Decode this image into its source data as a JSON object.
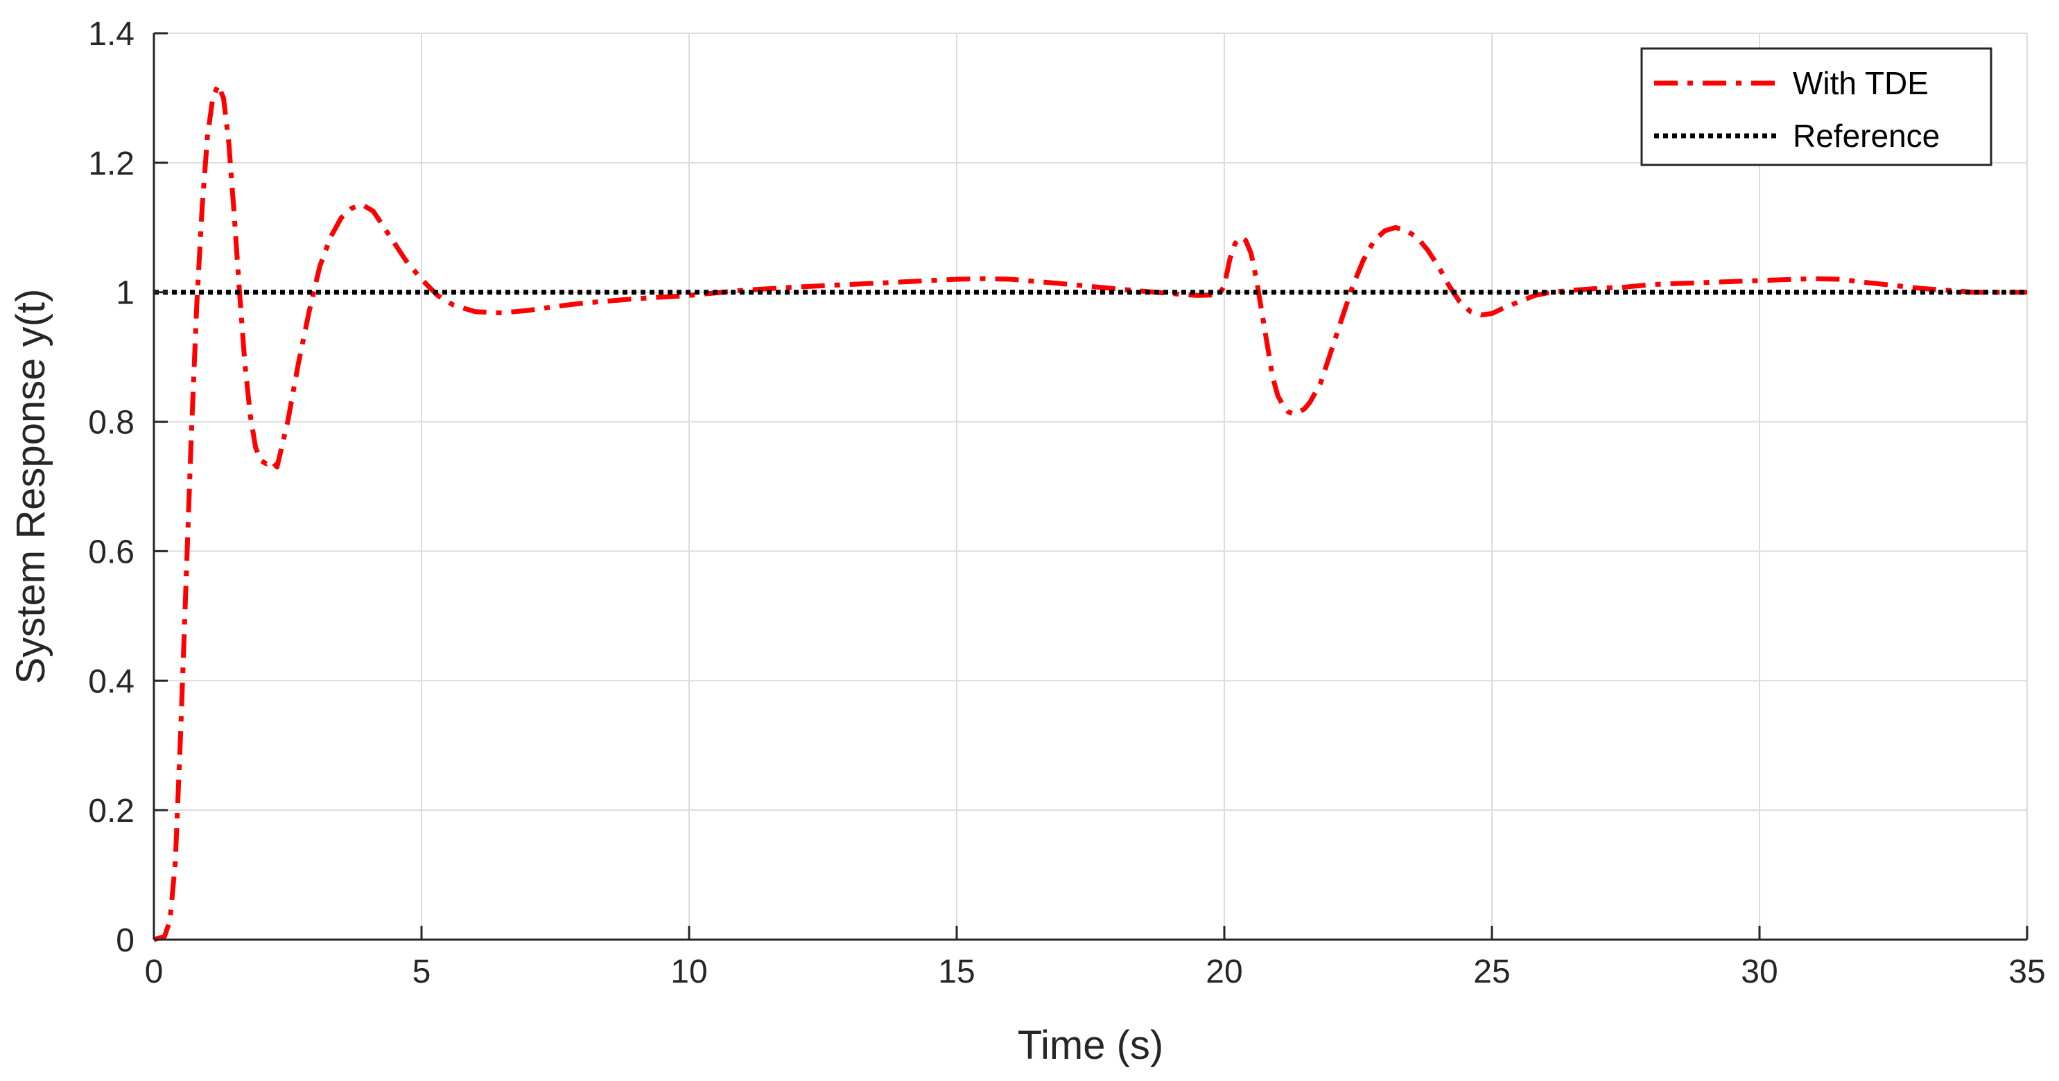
{
  "chart_data": {
    "type": "line",
    "title": "",
    "xlabel": "Time (s)",
    "ylabel": "System Response y(t)",
    "xlim": [
      0,
      35
    ],
    "ylim": [
      0,
      1.4
    ],
    "xticks": [
      0,
      5,
      10,
      15,
      20,
      25,
      30,
      35
    ],
    "yticks": [
      0,
      0.2,
      0.4,
      0.6,
      0.8,
      1,
      1.2,
      1.4
    ],
    "xtick_labels": [
      "0",
      "5",
      "10",
      "15",
      "20",
      "25",
      "30",
      "35"
    ],
    "ytick_labels": [
      "0",
      "0.2",
      "0.4",
      "0.6",
      "0.8",
      "1",
      "1.2",
      "1.4"
    ],
    "grid": true,
    "legend_position": "top-right",
    "series": [
      {
        "name": "With TDE",
        "color": "#ff0000",
        "style": "dash-dot",
        "x": [
          0,
          0.2,
          0.3,
          0.4,
          0.5,
          0.6,
          0.7,
          0.8,
          0.9,
          1.0,
          1.1,
          1.2,
          1.3,
          1.4,
          1.5,
          1.6,
          1.7,
          1.8,
          1.9,
          2.0,
          2.1,
          2.2,
          2.3,
          2.5,
          2.7,
          2.9,
          3.1,
          3.3,
          3.5,
          3.7,
          3.9,
          4.1,
          4.3,
          4.5,
          4.7,
          5.0,
          5.3,
          5.6,
          6.0,
          6.5,
          7.0,
          7.5,
          8,
          9,
          10,
          11,
          12,
          13,
          14,
          15,
          15.5,
          16,
          17,
          18,
          19,
          19.5,
          19.9,
          20.0,
          20.1,
          20.2,
          20.3,
          20.4,
          20.5,
          20.6,
          20.7,
          20.8,
          20.9,
          21.0,
          21.1,
          21.2,
          21.3,
          21.4,
          21.5,
          21.6,
          21.8,
          22.0,
          22.2,
          22.4,
          22.6,
          22.8,
          23.0,
          23.2,
          23.4,
          23.6,
          23.8,
          24.0,
          24.2,
          24.4,
          24.6,
          24.8,
          25.0,
          25.2,
          25.5,
          25.8,
          26.1,
          26.5,
          27.0,
          27.5,
          28,
          29,
          30,
          31,
          31.5,
          32,
          33,
          34,
          35
        ],
        "y": [
          0,
          0.005,
          0.03,
          0.12,
          0.32,
          0.55,
          0.78,
          0.98,
          1.13,
          1.24,
          1.3,
          1.32,
          1.3,
          1.23,
          1.12,
          1.0,
          0.89,
          0.81,
          0.76,
          0.74,
          0.735,
          0.74,
          0.73,
          0.8,
          0.89,
          0.97,
          1.04,
          1.085,
          1.115,
          1.13,
          1.135,
          1.125,
          1.1,
          1.075,
          1.05,
          1.02,
          0.995,
          0.98,
          0.97,
          0.968,
          0.972,
          0.978,
          0.983,
          0.99,
          0.995,
          1.003,
          1.008,
          1.012,
          1.016,
          1.02,
          1.021,
          1.02,
          1.013,
          1.005,
          0.998,
          0.995,
          0.996,
          1.01,
          1.05,
          1.075,
          1.085,
          1.08,
          1.06,
          1.02,
          0.97,
          0.92,
          0.87,
          0.84,
          0.825,
          0.815,
          0.812,
          0.815,
          0.82,
          0.83,
          0.86,
          0.91,
          0.96,
          1.01,
          1.05,
          1.08,
          1.095,
          1.1,
          1.095,
          1.085,
          1.065,
          1.04,
          1.01,
          0.985,
          0.97,
          0.965,
          0.967,
          0.975,
          0.985,
          0.995,
          1.0,
          1.003,
          1.006,
          1.008,
          1.012,
          1.015,
          1.018,
          1.021,
          1.02,
          1.015,
          1.006,
          1.0,
          1.0
        ]
      },
      {
        "name": "Reference",
        "color": "#000000",
        "style": "dotted",
        "x": [
          0,
          35
        ],
        "y": [
          1,
          1
        ]
      }
    ]
  }
}
